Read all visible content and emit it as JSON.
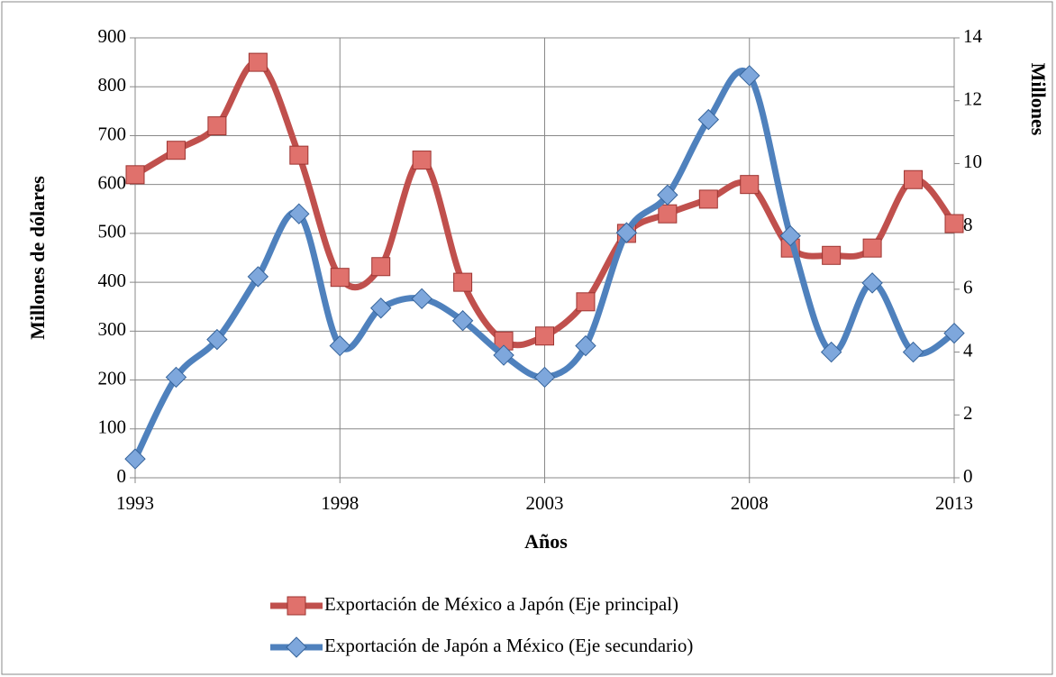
{
  "chart_data": {
    "type": "line",
    "x": [
      1993,
      1994,
      1995,
      1996,
      1997,
      1998,
      1999,
      2000,
      2001,
      2002,
      2003,
      2004,
      2005,
      2006,
      2007,
      2008,
      2009,
      2010,
      2011,
      2012,
      2013
    ],
    "series": [
      {
        "name": "Exportación de México a Japón (Eje principal)",
        "color": "#c0504d",
        "marker": "square",
        "values": [
          620,
          670,
          720,
          850,
          660,
          410,
          432,
          650,
          400,
          280,
          290,
          360,
          500,
          540,
          570,
          600,
          470,
          455,
          470,
          610,
          520
        ]
      },
      {
        "name": "Exportación de Japón a México (Eje secundario)",
        "color": "#4f81bd",
        "marker": "diamond",
        "axis": "y2",
        "values": [
          0.6,
          3.2,
          4.4,
          6.4,
          8.4,
          4.2,
          5.4,
          5.7,
          5.0,
          3.9,
          3.2,
          4.2,
          7.8,
          9.0,
          11.4,
          12.8,
          7.7,
          4.0,
          6.2,
          4.0,
          4.6
        ]
      }
    ],
    "xlabel": "Años",
    "ylabel": "Millones de dólares",
    "y2label": "Millones",
    "xlim": [
      1993,
      2013
    ],
    "xticks": [
      1993,
      1998,
      2003,
      2008,
      2013
    ],
    "ylim": [
      0,
      900
    ],
    "yticks": [
      0,
      100,
      200,
      300,
      400,
      500,
      600,
      700,
      800,
      900
    ],
    "y2lim": [
      0,
      14
    ],
    "y2ticks": [
      0,
      2,
      4,
      6,
      8,
      10,
      12,
      14
    ],
    "grid": true,
    "smooth": true,
    "legend": "bottom"
  }
}
